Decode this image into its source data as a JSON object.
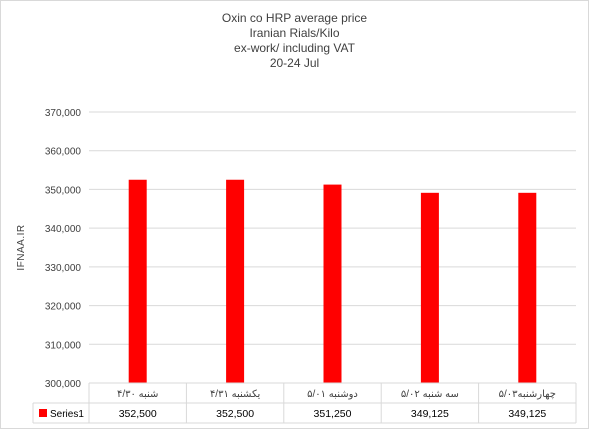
{
  "chart_data": {
    "type": "bar",
    "title": [
      "Oxin co HRP average  price",
      "Iranian  Rials/Kilo",
      "ex-work/ including VAT",
      "20-24  Jul"
    ],
    "ylabel": "IFNAA.IR",
    "xlabel": "",
    "categories": [
      "شنبه ۴/۳۰",
      "یکشنبه ۴/۳۱",
      "دوشنبه ۵/۰۱",
      "سه شنبه ۵/۰۲",
      "چهارشنبه۵/۰۳"
    ],
    "series": [
      {
        "name": "Series1",
        "values": [
          352500,
          352500,
          351250,
          349125,
          349125
        ],
        "color": "#ff0000"
      }
    ],
    "value_labels": [
      "352,500",
      "352,500",
      "351,250",
      "349,125",
      "349,125"
    ],
    "ylim": [
      300000,
      370000
    ],
    "yticks": [
      "300,000",
      "310,000",
      "320,000",
      "330,000",
      "340,000",
      "350,000",
      "360,000",
      "370,000"
    ],
    "grid": true,
    "legend": "data-table-left",
    "gridline_color": "#d9d9d9"
  }
}
